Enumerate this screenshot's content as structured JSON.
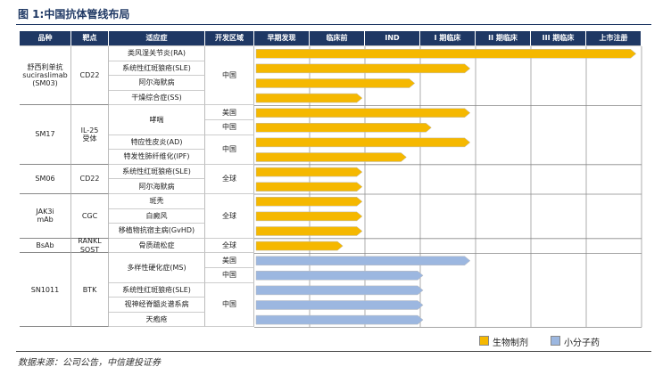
{
  "title": "图 1:中国抗体管线布局",
  "columns": [
    "品种",
    "靶点",
    "适应症",
    "开发区域"
  ],
  "stages": [
    "早期发现",
    "临床前",
    "IND",
    "I 期临床",
    "II 期临床",
    "III 期临床",
    "上市注册"
  ],
  "groups": [
    {
      "drug": "舒西利单抗\nsuciraslimab\n(SM03)",
      "target": "CD22",
      "color": "#f5b800",
      "rows": [
        {
          "indication": "类风湿关节炎(RA)",
          "region": "中国",
          "progress": 6.9
        },
        {
          "indication": "系统性红斑狼疮(SLE)",
          "region": null,
          "progress": 3.9
        },
        {
          "indication": "阿尔海默病",
          "region": null,
          "progress": 2.9
        },
        {
          "indication": "干燥综合症(SS)",
          "region": null,
          "progress": 1.95
        }
      ]
    },
    {
      "drug": "SM17",
      "target": "IL-25\n受体",
      "color": "#f5b800",
      "rows": [
        {
          "indication": "哮喘",
          "region": "美国",
          "progress": 3.9
        },
        {
          "indication": null,
          "region": "中国",
          "progress": 3.2
        },
        {
          "indication": "特应性皮炎(AD)",
          "region": "中国",
          "progress": 3.9
        },
        {
          "indication": "特发性肺纤维化(IPF)",
          "region": null,
          "progress": 2.75
        }
      ]
    },
    {
      "drug": "SM06",
      "target": "CD22",
      "color": "#f5b800",
      "rows": [
        {
          "indication": "系统性红斑狼疮(SLE)",
          "region": "全球",
          "progress": 1.95
        },
        {
          "indication": "阿尔海默病",
          "region": null,
          "progress": 1.95
        }
      ]
    },
    {
      "drug": "JAK3i\nmAb",
      "target": "CGC",
      "color": "#f5b800",
      "rows": [
        {
          "indication": "斑秃",
          "region": "全球",
          "progress": 1.95
        },
        {
          "indication": "白癜风",
          "region": null,
          "progress": 1.95
        },
        {
          "indication": "移植物抗宿主病(GvHD)",
          "region": null,
          "progress": 1.95
        }
      ]
    },
    {
      "drug": "BsAb",
      "target": "RANKL\nSOST",
      "color": "#f5b800",
      "rows": [
        {
          "indication": "骨质疏松症",
          "region": "全球",
          "progress": 1.6
        }
      ]
    },
    {
      "drug": "SN1011",
      "target": "BTK",
      "color": "#9cb7e0",
      "rows": [
        {
          "indication": "多样性硬化症(MS)",
          "region": "美国",
          "progress": 3.9
        },
        {
          "indication": null,
          "region": "中国",
          "progress": 3.05
        },
        {
          "indication": "系统性红斑狼疮(SLE)",
          "region": "中国",
          "progress": 3.05
        },
        {
          "indication": "视神经脊髓炎谱系病",
          "region": null,
          "progress": 3.05
        },
        {
          "indication": "天疱疮",
          "region": null,
          "progress": 3.05
        }
      ]
    }
  ],
  "legend": [
    {
      "name": "生物制剂",
      "color": "#f5b800"
    },
    {
      "name": "小分子药",
      "color": "#9cb7e0"
    }
  ],
  "source": "数据来源：公司公告，中信建投证券"
}
